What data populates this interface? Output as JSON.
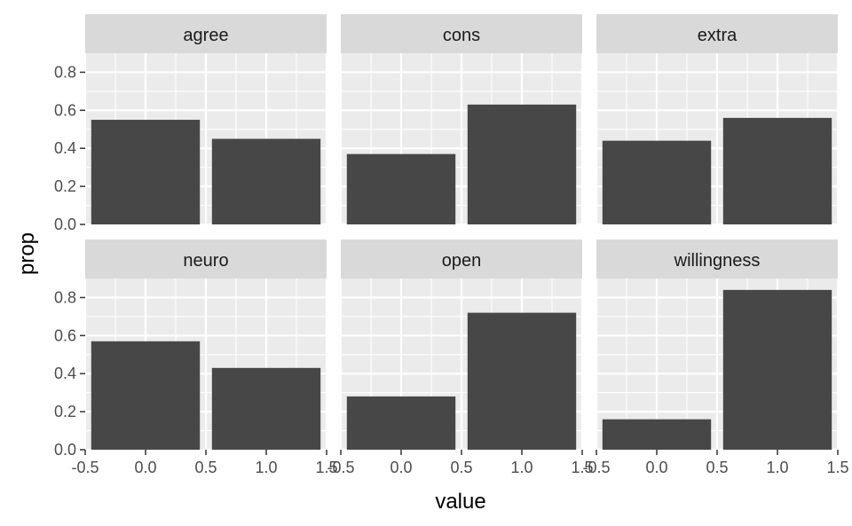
{
  "chart_data": {
    "type": "bar",
    "layout": "facet-grid",
    "xlabel": "value",
    "ylabel": "prop",
    "xlim": [
      -0.5,
      1.5
    ],
    "ylim": [
      0,
      0.9
    ],
    "x_ticks": [
      -0.5,
      0.0,
      0.5,
      1.0,
      1.5
    ],
    "x_tick_labels": [
      "-0.5",
      "0.0",
      "0.5",
      "1.0",
      "1.5"
    ],
    "y_ticks": [
      0.0,
      0.2,
      0.4,
      0.6,
      0.8
    ],
    "y_tick_labels": [
      "0.0",
      "0.2",
      "0.4",
      "0.6",
      "0.8"
    ],
    "categories": [
      0,
      1
    ],
    "bar_color": "#474747",
    "panel_background": "#ebebeb",
    "strip_background": "#d9d9d9",
    "grid": true,
    "panels": [
      {
        "name": "agree",
        "values": [
          0.55,
          0.45
        ]
      },
      {
        "name": "cons",
        "values": [
          0.37,
          0.63
        ]
      },
      {
        "name": "extra",
        "values": [
          0.44,
          0.56
        ]
      },
      {
        "name": "neuro",
        "values": [
          0.57,
          0.43
        ]
      },
      {
        "name": "open",
        "values": [
          0.28,
          0.72
        ]
      },
      {
        "name": "willingness",
        "values": [
          0.16,
          0.84
        ]
      }
    ]
  }
}
